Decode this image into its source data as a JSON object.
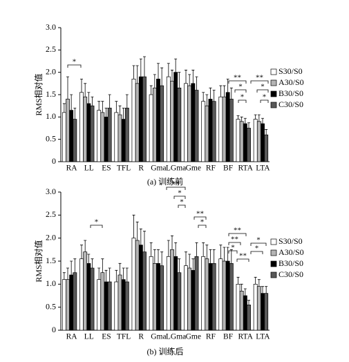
{
  "chart_data": [
    {
      "type": "bar",
      "title": "(a) 训练前",
      "y_label": "RMS相对值",
      "categories": [
        "RA",
        "LL",
        "ES",
        "TFL",
        "R",
        "Gma",
        "LGma",
        "Gme",
        "RF",
        "BF",
        "RTA",
        "LTA"
      ],
      "series": [
        {
          "name": "S30/S0",
          "color": "#ffffff",
          "values": [
            1.1,
            1.55,
            1.15,
            1.1,
            1.85,
            1.5,
            1.9,
            1.75,
            1.35,
            1.45,
            0.95,
            0.95
          ],
          "errors": [
            0.2,
            0.3,
            0.2,
            0.25,
            0.3,
            0.2,
            0.3,
            0.3,
            0.2,
            0.25,
            0.08,
            0.1
          ]
        },
        {
          "name": "A30/S0",
          "color": "#b4b4b4",
          "values": [
            1.4,
            1.45,
            1.1,
            1.05,
            1.75,
            1.65,
            1.8,
            1.7,
            1.25,
            1.45,
            0.9,
            0.9
          ],
          "errors": [
            0.5,
            0.3,
            0.25,
            0.2,
            0.4,
            0.3,
            0.25,
            0.25,
            0.25,
            0.25,
            0.1,
            0.15
          ]
        },
        {
          "name": "B30/S0",
          "color": "#000000",
          "values": [
            1.15,
            1.3,
            1.0,
            0.95,
            1.9,
            1.85,
            2.0,
            1.75,
            1.4,
            1.55,
            0.85,
            0.85
          ],
          "errors": [
            0.35,
            0.25,
            0.2,
            0.25,
            0.4,
            0.35,
            0.3,
            0.3,
            0.25,
            0.3,
            0.12,
            0.12
          ]
        },
        {
          "name": "C30/S0",
          "color": "#595959",
          "values": [
            0.95,
            1.25,
            1.2,
            1.2,
            1.9,
            1.7,
            1.65,
            1.6,
            1.35,
            1.4,
            0.75,
            0.6
          ],
          "errors": [
            0.25,
            0.2,
            0.3,
            0.3,
            0.45,
            0.4,
            0.35,
            0.3,
            0.25,
            0.25,
            0.12,
            0.12
          ]
        }
      ],
      "ylim": [
        0,
        3
      ],
      "yticks": [
        0,
        0.5,
        {
          "value": 1,
          "label": "1.0"
        },
        1.5,
        {
          "value": 2,
          "label": "2.0"
        },
        2.5,
        {
          "value": 3,
          "label": "3.0"
        }
      ],
      "annotations": [
        "*",
        "**",
        "*",
        "*",
        "**",
        "*",
        "*"
      ]
    },
    {
      "type": "bar",
      "title": "(b) 训练后",
      "y_label": "RMS相对值",
      "categories": [
        "RA",
        "LL",
        "ES",
        "TFL",
        "R",
        "Gma",
        "LGma",
        "Gme",
        "RF",
        "BF",
        "RTA",
        "LTA"
      ],
      "series": [
        {
          "name": "S30/S0",
          "color": "#ffffff",
          "values": [
            1.1,
            1.55,
            1.1,
            1.05,
            2.0,
            1.6,
            1.6,
            1.4,
            1.6,
            1.55,
            1.0,
            1.0
          ],
          "errors": [
            0.15,
            0.3,
            0.25,
            0.25,
            0.5,
            0.3,
            0.35,
            0.3,
            0.3,
            0.3,
            0.15,
            0.15
          ]
        },
        {
          "name": "A30/S0",
          "color": "#b4b4b4",
          "values": [
            1.1,
            1.7,
            1.25,
            1.2,
            1.95,
            1.45,
            1.75,
            1.35,
            1.55,
            1.5,
            0.85,
            0.95
          ],
          "errors": [
            0.25,
            0.25,
            0.3,
            0.25,
            0.4,
            0.3,
            0.3,
            0.3,
            0.3,
            0.3,
            0.15,
            0.15
          ]
        },
        {
          "name": "B30/S0",
          "color": "#000000",
          "values": [
            1.2,
            1.45,
            1.05,
            1.1,
            1.85,
            1.45,
            1.6,
            1.3,
            1.45,
            1.5,
            0.75,
            0.8
          ],
          "errors": [
            0.3,
            0.2,
            0.25,
            0.25,
            0.35,
            0.3,
            0.3,
            0.25,
            0.3,
            0.3,
            0.15,
            0.15
          ]
        },
        {
          "name": "C30/S0",
          "color": "#595959",
          "values": [
            1.25,
            1.35,
            1.05,
            1.05,
            1.7,
            1.4,
            1.25,
            1.6,
            1.45,
            1.45,
            0.55,
            0.8
          ],
          "errors": [
            0.3,
            0.2,
            0.3,
            0.3,
            0.45,
            0.3,
            0.3,
            0.3,
            0.3,
            0.3,
            0.1,
            0.15
          ]
        }
      ],
      "ylim": [
        0,
        3
      ],
      "yticks": [
        0,
        0.5,
        {
          "value": 1,
          "label": "1.0"
        },
        1.5,
        {
          "value": 2,
          "label": "2.0"
        },
        2.5,
        {
          "value": 3,
          "label": "3.0"
        }
      ],
      "annotations": [
        "*",
        "**",
        "*",
        "*",
        "**",
        "*",
        "**",
        "**",
        "*",
        "**",
        "*",
        "*"
      ]
    }
  ]
}
